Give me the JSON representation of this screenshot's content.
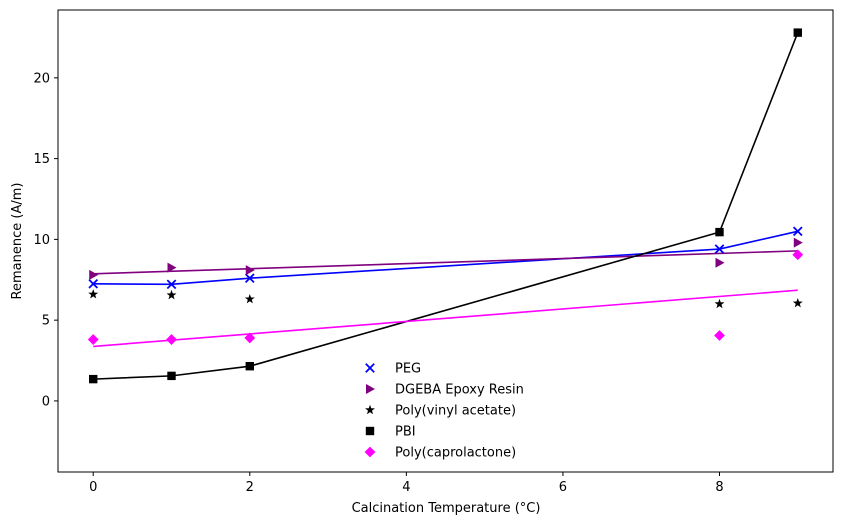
{
  "chart_data": {
    "type": "scatter",
    "title": "",
    "xlabel": "Calcination Temperature (°C)",
    "ylabel": "Remanence (A/m)",
    "xlim": [
      -0.45,
      9.45
    ],
    "ylim": [
      -4.4,
      24.2
    ],
    "xticks": [
      0,
      2,
      4,
      6,
      8
    ],
    "yticks": [
      0,
      5,
      10,
      15,
      20
    ],
    "legend_position": "bottom-center",
    "series": [
      {
        "name": "PEG",
        "marker": "x",
        "color": "#0000ff",
        "x": [
          0,
          1,
          2,
          8,
          9
        ],
        "y": [
          7.25,
          7.22,
          7.6,
          9.4,
          10.5
        ],
        "line": {
          "kind": "connect",
          "color": "#0000ff"
        }
      },
      {
        "name": "DGEBA Epoxy Resin",
        "marker": "triangle-right",
        "color": "#800080",
        "x": [
          0,
          1,
          2,
          8,
          9
        ],
        "y": [
          7.8,
          8.25,
          8.1,
          8.55,
          9.8
        ],
        "line": {
          "kind": "fit",
          "color": "#800080"
        }
      },
      {
        "name": "Poly(vinyl acetate)",
        "marker": "star",
        "color": "#000000",
        "x": [
          0,
          1,
          2,
          8,
          9
        ],
        "y": [
          6.6,
          6.55,
          6.3,
          6.0,
          6.05
        ],
        "line": null
      },
      {
        "name": "PBI",
        "marker": "square",
        "color": "#000000",
        "x": [
          0,
          1,
          2,
          8,
          9
        ],
        "y": [
          1.35,
          1.55,
          2.15,
          10.45,
          22.8
        ],
        "line": {
          "kind": "connect",
          "color": "#000000"
        }
      },
      {
        "name": "Poly(caprolactone)",
        "marker": "diamond",
        "color": "#ff00ff",
        "x": [
          0,
          1,
          2,
          8,
          9
        ],
        "y": [
          3.8,
          3.8,
          3.9,
          4.05,
          9.05
        ],
        "line": {
          "kind": "fit",
          "color": "#ff00ff"
        }
      }
    ]
  }
}
